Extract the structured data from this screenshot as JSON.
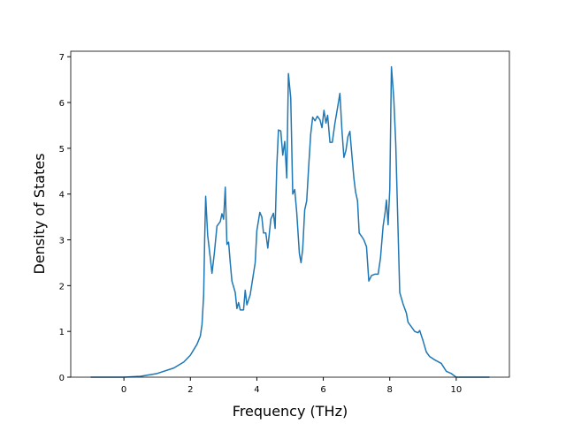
{
  "chart_data": {
    "type": "line",
    "x_label": "Frequency (THz)",
    "y_label": "Density of States",
    "x": [
      -1,
      -0.5,
      0,
      0.5,
      1,
      1.5,
      1.8,
      2.0,
      2.2,
      2.3,
      2.35,
      2.4,
      2.43,
      2.46,
      2.52,
      2.6,
      2.65,
      2.72,
      2.8,
      2.9,
      2.95,
      3.0,
      3.05,
      3.1,
      3.15,
      3.2,
      3.25,
      3.35,
      3.4,
      3.45,
      3.5,
      3.6,
      3.65,
      3.7,
      3.8,
      3.95,
      4.0,
      4.09,
      4.15,
      4.2,
      4.27,
      4.33,
      4.42,
      4.5,
      4.55,
      4.6,
      4.65,
      4.72,
      4.78,
      4.84,
      4.9,
      4.95,
      5.02,
      5.08,
      5.14,
      5.2,
      5.28,
      5.33,
      5.38,
      5.44,
      5.5,
      5.56,
      5.62,
      5.68,
      5.75,
      5.82,
      5.9,
      5.96,
      6.02,
      6.08,
      6.13,
      6.2,
      6.27,
      6.35,
      6.42,
      6.5,
      6.56,
      6.62,
      6.68,
      6.74,
      6.8,
      6.86,
      6.92,
      6.97,
      7.03,
      7.08,
      7.15,
      7.22,
      7.3,
      7.37,
      7.45,
      7.55,
      7.65,
      7.72,
      7.8,
      7.86,
      7.9,
      7.95,
      8.0,
      8.05,
      8.12,
      8.18,
      8.25,
      8.3,
      8.4,
      8.5,
      8.55,
      8.65,
      8.75,
      8.85,
      8.9,
      9.0,
      9.1,
      9.2,
      9.35,
      9.55,
      9.7,
      9.85,
      10.0,
      10.5,
      11
    ],
    "series": [
      {
        "name": "DOS",
        "color": "#1f77b4",
        "values": [
          0,
          0,
          0,
          0.02,
          0.08,
          0.2,
          0.33,
          0.48,
          0.72,
          0.9,
          1.15,
          1.8,
          3.0,
          3.95,
          3.1,
          2.6,
          2.27,
          2.7,
          3.3,
          3.4,
          3.57,
          3.45,
          4.15,
          2.9,
          2.95,
          2.5,
          2.1,
          1.85,
          1.5,
          1.63,
          1.47,
          1.47,
          1.9,
          1.58,
          1.8,
          2.5,
          3.2,
          3.6,
          3.5,
          3.15,
          3.15,
          2.82,
          3.45,
          3.58,
          3.25,
          4.6,
          5.4,
          5.38,
          4.85,
          5.15,
          4.35,
          6.63,
          6.1,
          4.0,
          4.1,
          3.6,
          2.7,
          2.5,
          2.8,
          3.65,
          3.85,
          4.6,
          5.3,
          5.68,
          5.6,
          5.7,
          5.62,
          5.45,
          5.83,
          5.55,
          5.72,
          5.13,
          5.13,
          5.55,
          5.85,
          6.2,
          5.4,
          4.8,
          4.95,
          5.25,
          5.37,
          4.85,
          4.35,
          4.05,
          3.85,
          3.15,
          3.08,
          3.0,
          2.85,
          2.1,
          2.22,
          2.25,
          2.25,
          2.6,
          3.3,
          3.6,
          3.87,
          3.33,
          4.1,
          6.78,
          6.1,
          5.1,
          3.2,
          1.85,
          1.6,
          1.4,
          1.2,
          1.1,
          1.0,
          0.97,
          1.02,
          0.8,
          0.55,
          0.45,
          0.38,
          0.3,
          0.13,
          0.08,
          0.0,
          0,
          0
        ]
      }
    ],
    "xlim": [
      -1.6,
      11.6
    ],
    "ylim": [
      0,
      7.12
    ],
    "xticks": [
      0,
      2,
      4,
      6,
      8,
      10
    ],
    "yticks": [
      0,
      1,
      2,
      3,
      4,
      5,
      6,
      7
    ]
  }
}
